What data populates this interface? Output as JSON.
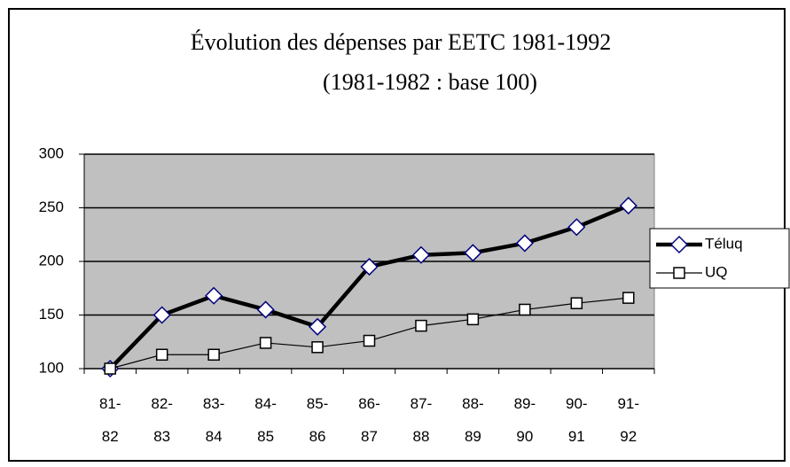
{
  "chart_data": {
    "type": "line",
    "title": [
      "Évolution des dépenses par EETC 1981-1992",
      "(1981-1982 : base 100)"
    ],
    "categories": [
      "81-82",
      "82-83",
      "83-84",
      "84-85",
      "85-86",
      "86-87",
      "87-88",
      "88-89",
      "89-90",
      "90-91",
      "91-92"
    ],
    "series": [
      {
        "name": "Téluq",
        "color": "#000000",
        "marker": "diamond",
        "marker_color": "#000080",
        "values": [
          100,
          150,
          168,
          155,
          139,
          195,
          206,
          208,
          217,
          232,
          252
        ]
      },
      {
        "name": "UQ",
        "color": "#000000",
        "marker": "square",
        "marker_color": "#000000",
        "values": [
          100,
          113,
          113,
          124,
          120,
          126,
          140,
          146,
          155,
          161,
          166
        ]
      }
    ],
    "ylim": [
      100,
      300
    ],
    "yticks": [
      100,
      150,
      200,
      250,
      300
    ],
    "grid": true,
    "legend": "right"
  }
}
